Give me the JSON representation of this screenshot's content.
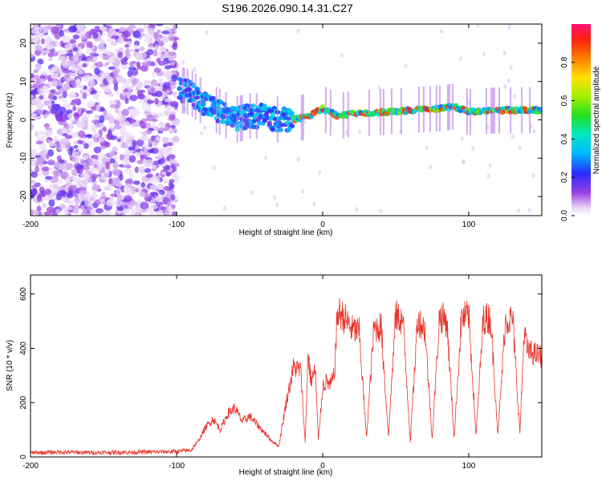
{
  "title": "S196.2026.090.14.31.C27",
  "colorbar": {
    "label": "Normalized spectral amplitude",
    "ticks": [
      "0.0",
      "0.2",
      "0.4",
      "0.6",
      "0.8"
    ],
    "tick_values": [
      0.0,
      0.2,
      0.4,
      0.6,
      0.8
    ]
  },
  "chart_data": [
    {
      "type": "heatmap",
      "name": "spectrogram",
      "xlabel": "Height of straight line (km)",
      "ylabel": "Frequency (Hz)",
      "xlim": [
        -200,
        150
      ],
      "ylim": [
        -25,
        25
      ],
      "xticks": [
        "-200",
        "-100",
        "0",
        "100"
      ],
      "xtick_values": [
        -200,
        -100,
        0,
        100
      ],
      "yticks": [
        "-20",
        "-10",
        "0",
        "10",
        "20"
      ],
      "ytick_values": [
        -20,
        -10,
        0,
        10,
        20
      ],
      "colormap": "rainbow (0=white/violet, 1=red/magenta)",
      "description_values": {
        "noise_region_x": [
          -200,
          -100
        ],
        "signal_track": [
          {
            "x": -98,
            "freq": 8
          },
          {
            "x": -90,
            "freq": 7
          },
          {
            "x": -80,
            "freq": 4
          },
          {
            "x": -70,
            "freq": 2
          },
          {
            "x": -60,
            "freq": 0
          },
          {
            "x": -50,
            "freq": 1
          },
          {
            "x": -40,
            "freq": 1
          },
          {
            "x": -30,
            "freq": 0
          },
          {
            "x": -20,
            "freq": 0
          },
          {
            "x": -10,
            "freq": 1
          },
          {
            "x": 0,
            "freq": 3
          },
          {
            "x": 10,
            "freq": 1
          },
          {
            "x": 20,
            "freq": 1.5
          },
          {
            "x": 40,
            "freq": 2
          },
          {
            "x": 60,
            "freq": 2.5
          },
          {
            "x": 80,
            "freq": 3
          },
          {
            "x": 90,
            "freq": 3.5
          },
          {
            "x": 100,
            "freq": 2
          },
          {
            "x": 120,
            "freq": 2.5
          },
          {
            "x": 150,
            "freq": 2.5
          }
        ]
      }
    },
    {
      "type": "line",
      "name": "snr",
      "xlabel": "Height of straight line (km)",
      "ylabel": "SNR (10 * v/v)",
      "xlim": [
        -200,
        150
      ],
      "ylim": [
        0,
        670
      ],
      "xticks": [
        "-200",
        "-100",
        "0",
        "100"
      ],
      "xtick_values": [
        -200,
        -100,
        0,
        100
      ],
      "yticks": [
        "0",
        "200",
        "400",
        "600"
      ],
      "ytick_values": [
        0,
        200,
        400,
        600
      ],
      "color": "#e8332a",
      "series": [
        {
          "name": "SNR",
          "x": [
            -200,
            -180,
            -160,
            -140,
            -120,
            -100,
            -90,
            -85,
            -80,
            -75,
            -70,
            -65,
            -60,
            -55,
            -50,
            -45,
            -40,
            -35,
            -30,
            -25,
            -20,
            -15,
            -12,
            -10,
            -8,
            -5,
            -3,
            0,
            3,
            5,
            8,
            10,
            12,
            15,
            20,
            25,
            30,
            35,
            40,
            45,
            50,
            55,
            60,
            65,
            70,
            75,
            80,
            85,
            90,
            95,
            100,
            105,
            110,
            115,
            120,
            125,
            130,
            135,
            138,
            140,
            145,
            150
          ],
          "y": [
            15,
            18,
            16,
            17,
            18,
            20,
            25,
            60,
            110,
            140,
            100,
            160,
            180,
            130,
            150,
            120,
            90,
            60,
            40,
            200,
            330,
            320,
            50,
            380,
            280,
            320,
            60,
            260,
            280,
            260,
            300,
            520,
            530,
            510,
            470,
            460,
            70,
            470,
            480,
            80,
            520,
            500,
            60,
            510,
            470,
            70,
            520,
            500,
            70,
            510,
            520,
            80,
            510,
            510,
            80,
            500,
            510,
            90,
            470,
            390,
            380,
            370
          ]
        }
      ]
    }
  ]
}
